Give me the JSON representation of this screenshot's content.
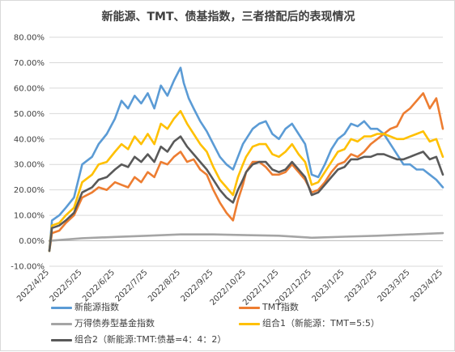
{
  "chart_data": {
    "type": "line",
    "title": "新能源、TMT、债基指数，三者搭配后的表现情况",
    "xlabel": "",
    "ylabel": "",
    "ylim": [
      -10,
      80
    ],
    "y_ticks": [
      "-10.00%",
      "0.00%",
      "10.00%",
      "20.00%",
      "30.00%",
      "40.00%",
      "50.00%",
      "60.00%",
      "70.00%",
      "80.00%"
    ],
    "x_ticks": [
      "2022/4/25",
      "2022/5/25",
      "2022/6/25",
      "2022/7/25",
      "2022/8/25",
      "2022/9/25",
      "2022/10/25",
      "2022/11/25",
      "2022/12/25",
      "2023/1/25",
      "2023/2/25",
      "2023/3/25",
      "2023/4/25"
    ],
    "x_range": [
      0,
      12
    ],
    "grid": "horizontal",
    "legend_position": "bottom",
    "series": [
      {
        "name": "新能源指数",
        "color": "#5b9bd5",
        "points": [
          [
            0,
            -4
          ],
          [
            0.08,
            8
          ],
          [
            0.3,
            10
          ],
          [
            0.5,
            13
          ],
          [
            0.75,
            17
          ],
          [
            1,
            30
          ],
          [
            1.3,
            33
          ],
          [
            1.5,
            38
          ],
          [
            1.75,
            42
          ],
          [
            2,
            48
          ],
          [
            2.2,
            55
          ],
          [
            2.4,
            52
          ],
          [
            2.6,
            57
          ],
          [
            2.8,
            54
          ],
          [
            3,
            58
          ],
          [
            3.2,
            52
          ],
          [
            3.4,
            61
          ],
          [
            3.6,
            57
          ],
          [
            3.8,
            63
          ],
          [
            4,
            68
          ],
          [
            4.1,
            62
          ],
          [
            4.25,
            56
          ],
          [
            4.4,
            52
          ],
          [
            4.6,
            47
          ],
          [
            4.8,
            43
          ],
          [
            5,
            38
          ],
          [
            5.2,
            33
          ],
          [
            5.4,
            30
          ],
          [
            5.6,
            28
          ],
          [
            5.75,
            33
          ],
          [
            5.9,
            38
          ],
          [
            6,
            40
          ],
          [
            6.2,
            44
          ],
          [
            6.4,
            46
          ],
          [
            6.6,
            47
          ],
          [
            6.8,
            42
          ],
          [
            7,
            40
          ],
          [
            7.2,
            44
          ],
          [
            7.4,
            46
          ],
          [
            7.6,
            42
          ],
          [
            7.8,
            38
          ],
          [
            8,
            26
          ],
          [
            8.2,
            25
          ],
          [
            8.4,
            30
          ],
          [
            8.6,
            36
          ],
          [
            8.8,
            40
          ],
          [
            9,
            42
          ],
          [
            9.2,
            46
          ],
          [
            9.4,
            45
          ],
          [
            9.6,
            47
          ],
          [
            9.8,
            44
          ],
          [
            10,
            44
          ],
          [
            10.2,
            42
          ],
          [
            10.4,
            38
          ],
          [
            10.6,
            34
          ],
          [
            10.8,
            30
          ],
          [
            11,
            30
          ],
          [
            11.2,
            28
          ],
          [
            11.4,
            28
          ],
          [
            11.6,
            26
          ],
          [
            11.8,
            24
          ],
          [
            12,
            21
          ]
        ]
      },
      {
        "name": "TMT指数",
        "color": "#ed7d31",
        "points": [
          [
            0,
            -4
          ],
          [
            0.08,
            3
          ],
          [
            0.3,
            4
          ],
          [
            0.5,
            7
          ],
          [
            0.75,
            10
          ],
          [
            1,
            17
          ],
          [
            1.3,
            19
          ],
          [
            1.5,
            21
          ],
          [
            1.75,
            20
          ],
          [
            2,
            23
          ],
          [
            2.2,
            22
          ],
          [
            2.4,
            21
          ],
          [
            2.6,
            25
          ],
          [
            2.8,
            23
          ],
          [
            3,
            27
          ],
          [
            3.2,
            25
          ],
          [
            3.4,
            31
          ],
          [
            3.6,
            30
          ],
          [
            3.8,
            33
          ],
          [
            4,
            35
          ],
          [
            4.2,
            31
          ],
          [
            4.4,
            32
          ],
          [
            4.6,
            28
          ],
          [
            4.8,
            26
          ],
          [
            5,
            20
          ],
          [
            5.2,
            15
          ],
          [
            5.4,
            11
          ],
          [
            5.6,
            8
          ],
          [
            5.75,
            16
          ],
          [
            5.9,
            22
          ],
          [
            6,
            27
          ],
          [
            6.2,
            31
          ],
          [
            6.4,
            31
          ],
          [
            6.6,
            29
          ],
          [
            6.8,
            26
          ],
          [
            7,
            26
          ],
          [
            7.2,
            27
          ],
          [
            7.4,
            30
          ],
          [
            7.6,
            27
          ],
          [
            7.8,
            24
          ],
          [
            8,
            19
          ],
          [
            8.2,
            20
          ],
          [
            8.4,
            23
          ],
          [
            8.6,
            27
          ],
          [
            8.8,
            30
          ],
          [
            9,
            31
          ],
          [
            9.2,
            34
          ],
          [
            9.4,
            33
          ],
          [
            9.6,
            35
          ],
          [
            9.8,
            38
          ],
          [
            10,
            40
          ],
          [
            10.2,
            42
          ],
          [
            10.4,
            44
          ],
          [
            10.6,
            45
          ],
          [
            10.8,
            50
          ],
          [
            11,
            52
          ],
          [
            11.2,
            55
          ],
          [
            11.4,
            58
          ],
          [
            11.6,
            52
          ],
          [
            11.8,
            56
          ],
          [
            12,
            44
          ]
        ]
      },
      {
        "name": "万得债券型基金指数",
        "color": "#a5a5a5",
        "points": [
          [
            0,
            0
          ],
          [
            1,
            1
          ],
          [
            2,
            1.5
          ],
          [
            3,
            2
          ],
          [
            4,
            2.5
          ],
          [
            5,
            2.5
          ],
          [
            6,
            2.2
          ],
          [
            7,
            2
          ],
          [
            8,
            1.2
          ],
          [
            9,
            1.6
          ],
          [
            10,
            2
          ],
          [
            11,
            2.5
          ],
          [
            12,
            3
          ]
        ]
      },
      {
        "name": "组合1（新能源：TMT=5:5）",
        "color": "#ffc000",
        "points": [
          [
            0,
            -4
          ],
          [
            0.08,
            6
          ],
          [
            0.3,
            7
          ],
          [
            0.5,
            10
          ],
          [
            0.75,
            13
          ],
          [
            1,
            23
          ],
          [
            1.3,
            26
          ],
          [
            1.5,
            30
          ],
          [
            1.75,
            31
          ],
          [
            2,
            35
          ],
          [
            2.2,
            38
          ],
          [
            2.4,
            36
          ],
          [
            2.6,
            41
          ],
          [
            2.8,
            38
          ],
          [
            3,
            42
          ],
          [
            3.2,
            38
          ],
          [
            3.4,
            46
          ],
          [
            3.6,
            44
          ],
          [
            3.8,
            48
          ],
          [
            4,
            51
          ],
          [
            4.2,
            46
          ],
          [
            4.4,
            42
          ],
          [
            4.6,
            38
          ],
          [
            4.8,
            35
          ],
          [
            5,
            29
          ],
          [
            5.2,
            24
          ],
          [
            5.4,
            21
          ],
          [
            5.6,
            18
          ],
          [
            5.75,
            25
          ],
          [
            5.9,
            30
          ],
          [
            6,
            33
          ],
          [
            6.2,
            37
          ],
          [
            6.4,
            38
          ],
          [
            6.6,
            38
          ],
          [
            6.8,
            34
          ],
          [
            7,
            33
          ],
          [
            7.2,
            35
          ],
          [
            7.4,
            38
          ],
          [
            7.6,
            34
          ],
          [
            7.8,
            31
          ],
          [
            8,
            22
          ],
          [
            8.2,
            23
          ],
          [
            8.4,
            27
          ],
          [
            8.6,
            31
          ],
          [
            8.8,
            35
          ],
          [
            9,
            36
          ],
          [
            9.2,
            40
          ],
          [
            9.4,
            39
          ],
          [
            9.6,
            41
          ],
          [
            9.8,
            41
          ],
          [
            10,
            42
          ],
          [
            10.2,
            42
          ],
          [
            10.4,
            41
          ],
          [
            10.6,
            40
          ],
          [
            10.8,
            40
          ],
          [
            11,
            41
          ],
          [
            11.2,
            42
          ],
          [
            11.4,
            43
          ],
          [
            11.6,
            39
          ],
          [
            11.8,
            40
          ],
          [
            12,
            33
          ]
        ]
      },
      {
        "name": "组合2（新能源:TMT:债基=4：4：2）",
        "color": "#595959",
        "points": [
          [
            0,
            -4
          ],
          [
            0.08,
            5
          ],
          [
            0.3,
            6
          ],
          [
            0.5,
            8
          ],
          [
            0.75,
            11
          ],
          [
            1,
            19
          ],
          [
            1.3,
            21
          ],
          [
            1.5,
            24
          ],
          [
            1.75,
            25
          ],
          [
            2,
            28
          ],
          [
            2.2,
            30
          ],
          [
            2.4,
            29
          ],
          [
            2.6,
            33
          ],
          [
            2.8,
            31
          ],
          [
            3,
            34
          ],
          [
            3.2,
            31
          ],
          [
            3.4,
            37
          ],
          [
            3.6,
            35
          ],
          [
            3.8,
            39
          ],
          [
            4,
            41
          ],
          [
            4.2,
            37
          ],
          [
            4.4,
            34
          ],
          [
            4.6,
            31
          ],
          [
            4.8,
            28
          ],
          [
            5,
            24
          ],
          [
            5.2,
            20
          ],
          [
            5.4,
            17
          ],
          [
            5.6,
            15
          ],
          [
            5.75,
            20
          ],
          [
            5.9,
            24
          ],
          [
            6,
            27
          ],
          [
            6.2,
            30
          ],
          [
            6.4,
            31
          ],
          [
            6.6,
            31
          ],
          [
            6.8,
            28
          ],
          [
            7,
            27
          ],
          [
            7.2,
            28
          ],
          [
            7.4,
            31
          ],
          [
            7.6,
            28
          ],
          [
            7.8,
            25
          ],
          [
            8,
            18
          ],
          [
            8.2,
            19
          ],
          [
            8.4,
            22
          ],
          [
            8.6,
            25
          ],
          [
            8.8,
            28
          ],
          [
            9,
            29
          ],
          [
            9.2,
            32
          ],
          [
            9.4,
            32
          ],
          [
            9.6,
            33
          ],
          [
            9.8,
            33
          ],
          [
            10,
            34
          ],
          [
            10.2,
            34
          ],
          [
            10.4,
            33
          ],
          [
            10.6,
            32
          ],
          [
            10.8,
            32
          ],
          [
            11,
            33
          ],
          [
            11.2,
            34
          ],
          [
            11.4,
            35
          ],
          [
            11.6,
            32
          ],
          [
            11.8,
            33
          ],
          [
            12,
            26
          ]
        ]
      }
    ]
  }
}
